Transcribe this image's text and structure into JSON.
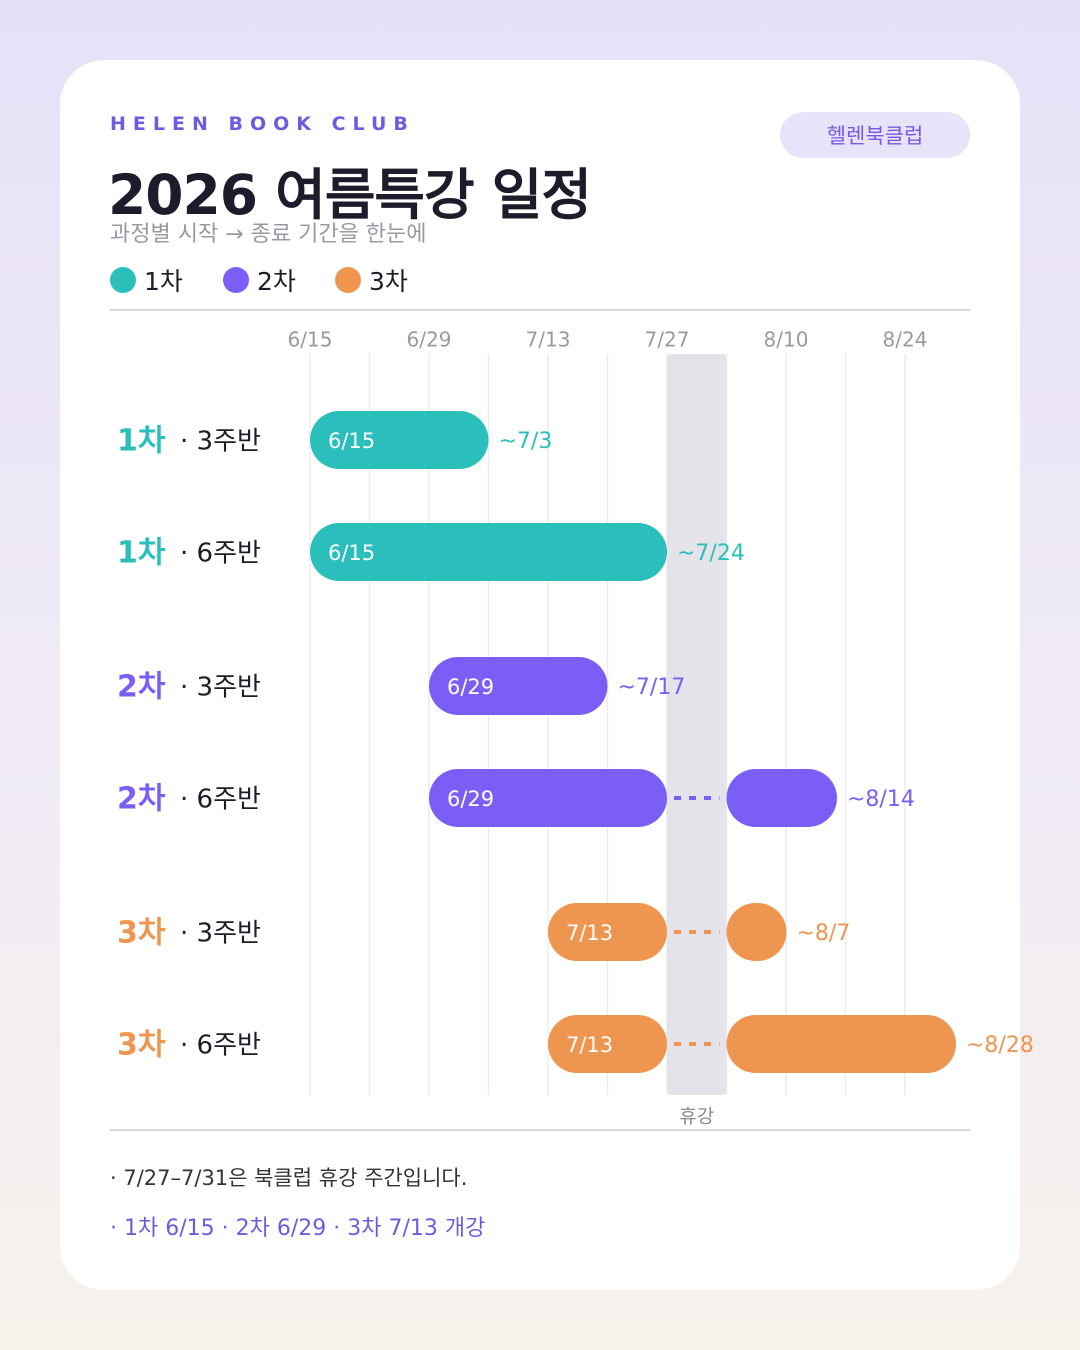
{
  "header": {
    "brand": "HELEN BOOK CLUB",
    "badge": "헬렌북클럽",
    "title": "2026 여름특강 일정",
    "subtitle": "과정별 시작 → 종료 기간을 한눈에"
  },
  "legend": [
    {
      "label": "1차",
      "color": "#2bbfbc"
    },
    {
      "label": "2차",
      "color": "#7b5ef5"
    },
    {
      "label": "3차",
      "color": "#ee9550"
    }
  ],
  "chart_data": {
    "type": "gantt",
    "x_ticks": [
      "6/15",
      "6/29",
      "7/13",
      "7/27",
      "8/10",
      "8/24"
    ],
    "x_range": [
      "6/15",
      "8/28"
    ],
    "break_period": {
      "label": "휴강",
      "start": "7/27",
      "end": "7/31"
    },
    "colors": {
      "1차": "#2bbfbc",
      "2차": "#7b5ef5",
      "3차": "#ee9550"
    },
    "rows": [
      {
        "group": "1차",
        "course": "· 3주반",
        "start": "6/15",
        "end": "7/3",
        "start_label": "6/15",
        "end_label": "~7/3"
      },
      {
        "group": "1차",
        "course": "· 6주반",
        "start": "6/15",
        "end": "7/24",
        "start_label": "6/15",
        "end_label": "~7/24"
      },
      {
        "group": "2차",
        "course": "· 3주반",
        "start": "6/29",
        "end": "7/17",
        "start_label": "6/29",
        "end_label": "~7/17"
      },
      {
        "group": "2차",
        "course": "· 6주반",
        "start": "6/29",
        "end": "8/14",
        "start_label": "6/29",
        "end_label": "~8/14"
      },
      {
        "group": "3차",
        "course": "· 3주반",
        "start": "7/13",
        "end": "8/7",
        "start_label": "7/13",
        "end_label": "~8/7"
      },
      {
        "group": "3차",
        "course": "· 6주반",
        "start": "7/13",
        "end": "8/28",
        "start_label": "7/13",
        "end_label": "~8/28"
      }
    ]
  },
  "notes": {
    "line1": "· 7/27–7/31은 북클럽 휴강 주간입니다.",
    "line2": "· 1차 6/15  ·  2차 6/29  ·  3차 7/13 개강"
  }
}
